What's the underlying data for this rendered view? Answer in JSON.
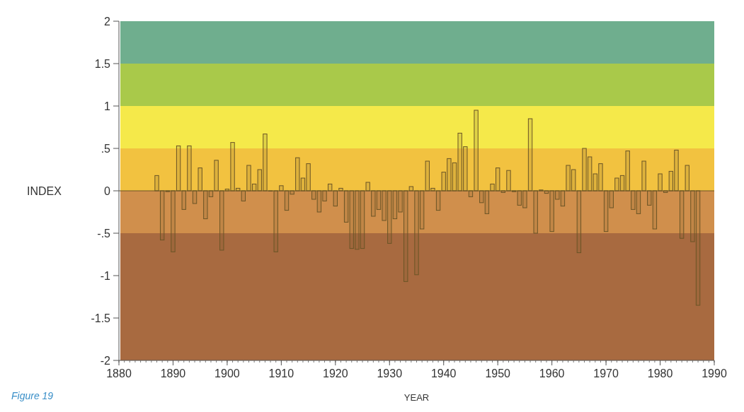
{
  "chart_data": {
    "type": "bar",
    "xlabel": "YEAR",
    "ylabel": "INDEX",
    "annotations": [
      "Figure 19"
    ],
    "x": [
      1887,
      1888,
      1889,
      1890,
      1891,
      1892,
      1893,
      1894,
      1895,
      1896,
      1897,
      1898,
      1899,
      1900,
      1901,
      1902,
      1903,
      1904,
      1905,
      1906,
      1907,
      1908,
      1909,
      1910,
      1911,
      1912,
      1913,
      1914,
      1915,
      1916,
      1917,
      1918,
      1919,
      1920,
      1921,
      1922,
      1923,
      1924,
      1925,
      1926,
      1927,
      1928,
      1929,
      1930,
      1931,
      1932,
      1933,
      1934,
      1935,
      1936,
      1937,
      1938,
      1939,
      1940,
      1941,
      1942,
      1943,
      1944,
      1945,
      1946,
      1947,
      1948,
      1949,
      1950,
      1951,
      1952,
      1953,
      1954,
      1955,
      1956,
      1957,
      1958,
      1959,
      1960,
      1961,
      1962,
      1963,
      1964,
      1965,
      1966,
      1967,
      1968,
      1969,
      1970,
      1971,
      1972,
      1973,
      1974,
      1975,
      1976,
      1977,
      1978,
      1979,
      1980,
      1981,
      1982,
      1983,
      1984,
      1985,
      1986,
      1987
    ],
    "values": [
      0.18,
      -0.58,
      -0.01,
      -0.72,
      0.53,
      -0.22,
      0.53,
      -0.15,
      0.27,
      -0.33,
      -0.07,
      0.36,
      -0.7,
      0.02,
      0.57,
      0.03,
      -0.12,
      0.3,
      0.08,
      0.25,
      0.67,
      0,
      -0.72,
      0.06,
      -0.23,
      -0.04,
      0.39,
      0.15,
      0.32,
      -0.1,
      -0.25,
      -0.12,
      0.08,
      -0.18,
      0.03,
      -0.37,
      -0.68,
      -0.69,
      -0.68,
      0.1,
      -0.3,
      -0.22,
      -0.35,
      -0.62,
      -0.33,
      -0.25,
      -1.07,
      0.05,
      -0.99,
      -0.45,
      0.35,
      0.03,
      -0.23,
      0.22,
      0.38,
      0.33,
      0.68,
      0.52,
      -0.07,
      0.95,
      -0.14,
      -0.27,
      0.08,
      0.27,
      -0.02,
      0.24,
      -0.01,
      -0.17,
      -0.2,
      0.85,
      -0.5,
      0.01,
      -0.03,
      -0.48,
      -0.1,
      -0.18,
      0.3,
      0.25,
      -0.73,
      0.5,
      0.4,
      0.2,
      0.32,
      -0.48,
      -0.2,
      0.15,
      0.18,
      0.47,
      -0.22,
      -0.27,
      0.35,
      -0.17,
      -0.45,
      0.2,
      -0.02,
      0.23,
      0.48,
      -0.56,
      0.3,
      -0.6,
      -1.35
    ],
    "color": "#6b5526",
    "xlim": [
      1880,
      1990
    ],
    "xticks": [
      1880,
      1890,
      1900,
      1910,
      1920,
      1930,
      1940,
      1950,
      1960,
      1970,
      1980,
      1990
    ],
    "ylim": [
      -2,
      2
    ],
    "yticks": [
      -2,
      {
        "value": -1.5,
        "label": "-1.5"
      },
      -1,
      {
        "value": -0.5,
        "label": "-.5"
      },
      0,
      {
        "value": 0.5,
        "label": ".5"
      },
      1,
      1.5,
      2
    ],
    "bands": [
      {
        "axis": "y",
        "from": 1.5,
        "to": 2,
        "color": "#6fae8e"
      },
      {
        "axis": "y",
        "from": 1,
        "to": 1.5,
        "color": "#a9c94a"
      },
      {
        "axis": "y",
        "from": 0.5,
        "to": 1,
        "color": "#f5e94a"
      },
      {
        "axis": "y",
        "from": 0,
        "to": 0.5,
        "color": "#f2c240"
      },
      {
        "axis": "y",
        "from": -0.5,
        "to": 0,
        "color": "#d08f4c"
      },
      {
        "axis": "y",
        "from": -2,
        "to": -0.5,
        "color": "#a86a40"
      }
    ],
    "ref_lines": [
      {
        "axis": "y",
        "value": 0,
        "color": "#6b5526"
      }
    ],
    "grid": false
  }
}
